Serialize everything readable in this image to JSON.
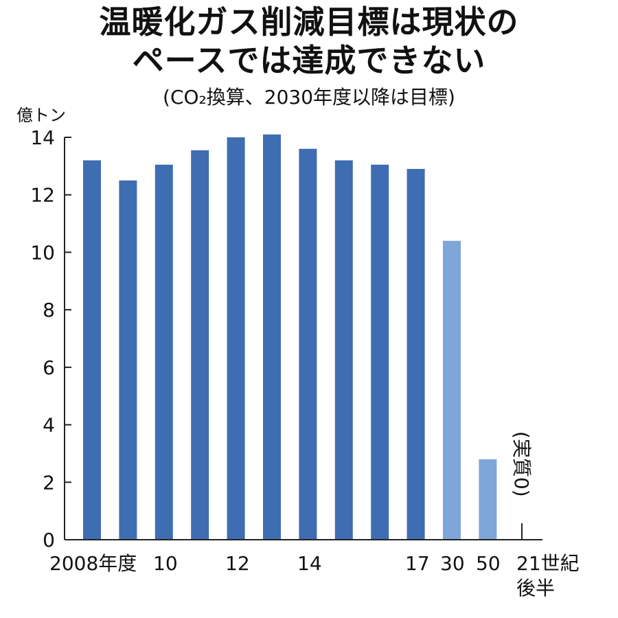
{
  "chart_data": {
    "type": "bar",
    "title_line1": "温暖化ガス削減目標は現状の",
    "title_line2": "ペースでは達成できない",
    "subtitle": "(CO₂換算、2030年度以降は目標)",
    "ylabel": "億トン",
    "ylim": [
      0,
      14
    ],
    "yticks": [
      "0",
      "2",
      "4",
      "6",
      "8",
      "10",
      "12",
      "14"
    ],
    "grid": false,
    "categories": [
      "2008",
      "2009",
      "2010",
      "2011",
      "2012",
      "2013",
      "2014",
      "2015",
      "2016",
      "2017",
      "2030",
      "2050",
      "21世紀後半"
    ],
    "values": [
      13.2,
      12.5,
      13.05,
      13.55,
      14.0,
      14.1,
      13.6,
      13.2,
      13.05,
      12.9,
      10.4,
      2.8,
      0
    ],
    "bar_kind": [
      "actual",
      "actual",
      "actual",
      "actual",
      "actual",
      "actual",
      "actual",
      "actual",
      "actual",
      "actual",
      "target",
      "target",
      "target"
    ],
    "x_tick_labels": [
      "2008年度",
      "10",
      "12",
      "14",
      "17",
      "30",
      "50",
      "21世紀",
      "後半"
    ],
    "annotation": "(実質0)",
    "colors": {
      "actual": "#3e6db2",
      "target": "#7fa6d8",
      "axis": "#222222"
    }
  }
}
